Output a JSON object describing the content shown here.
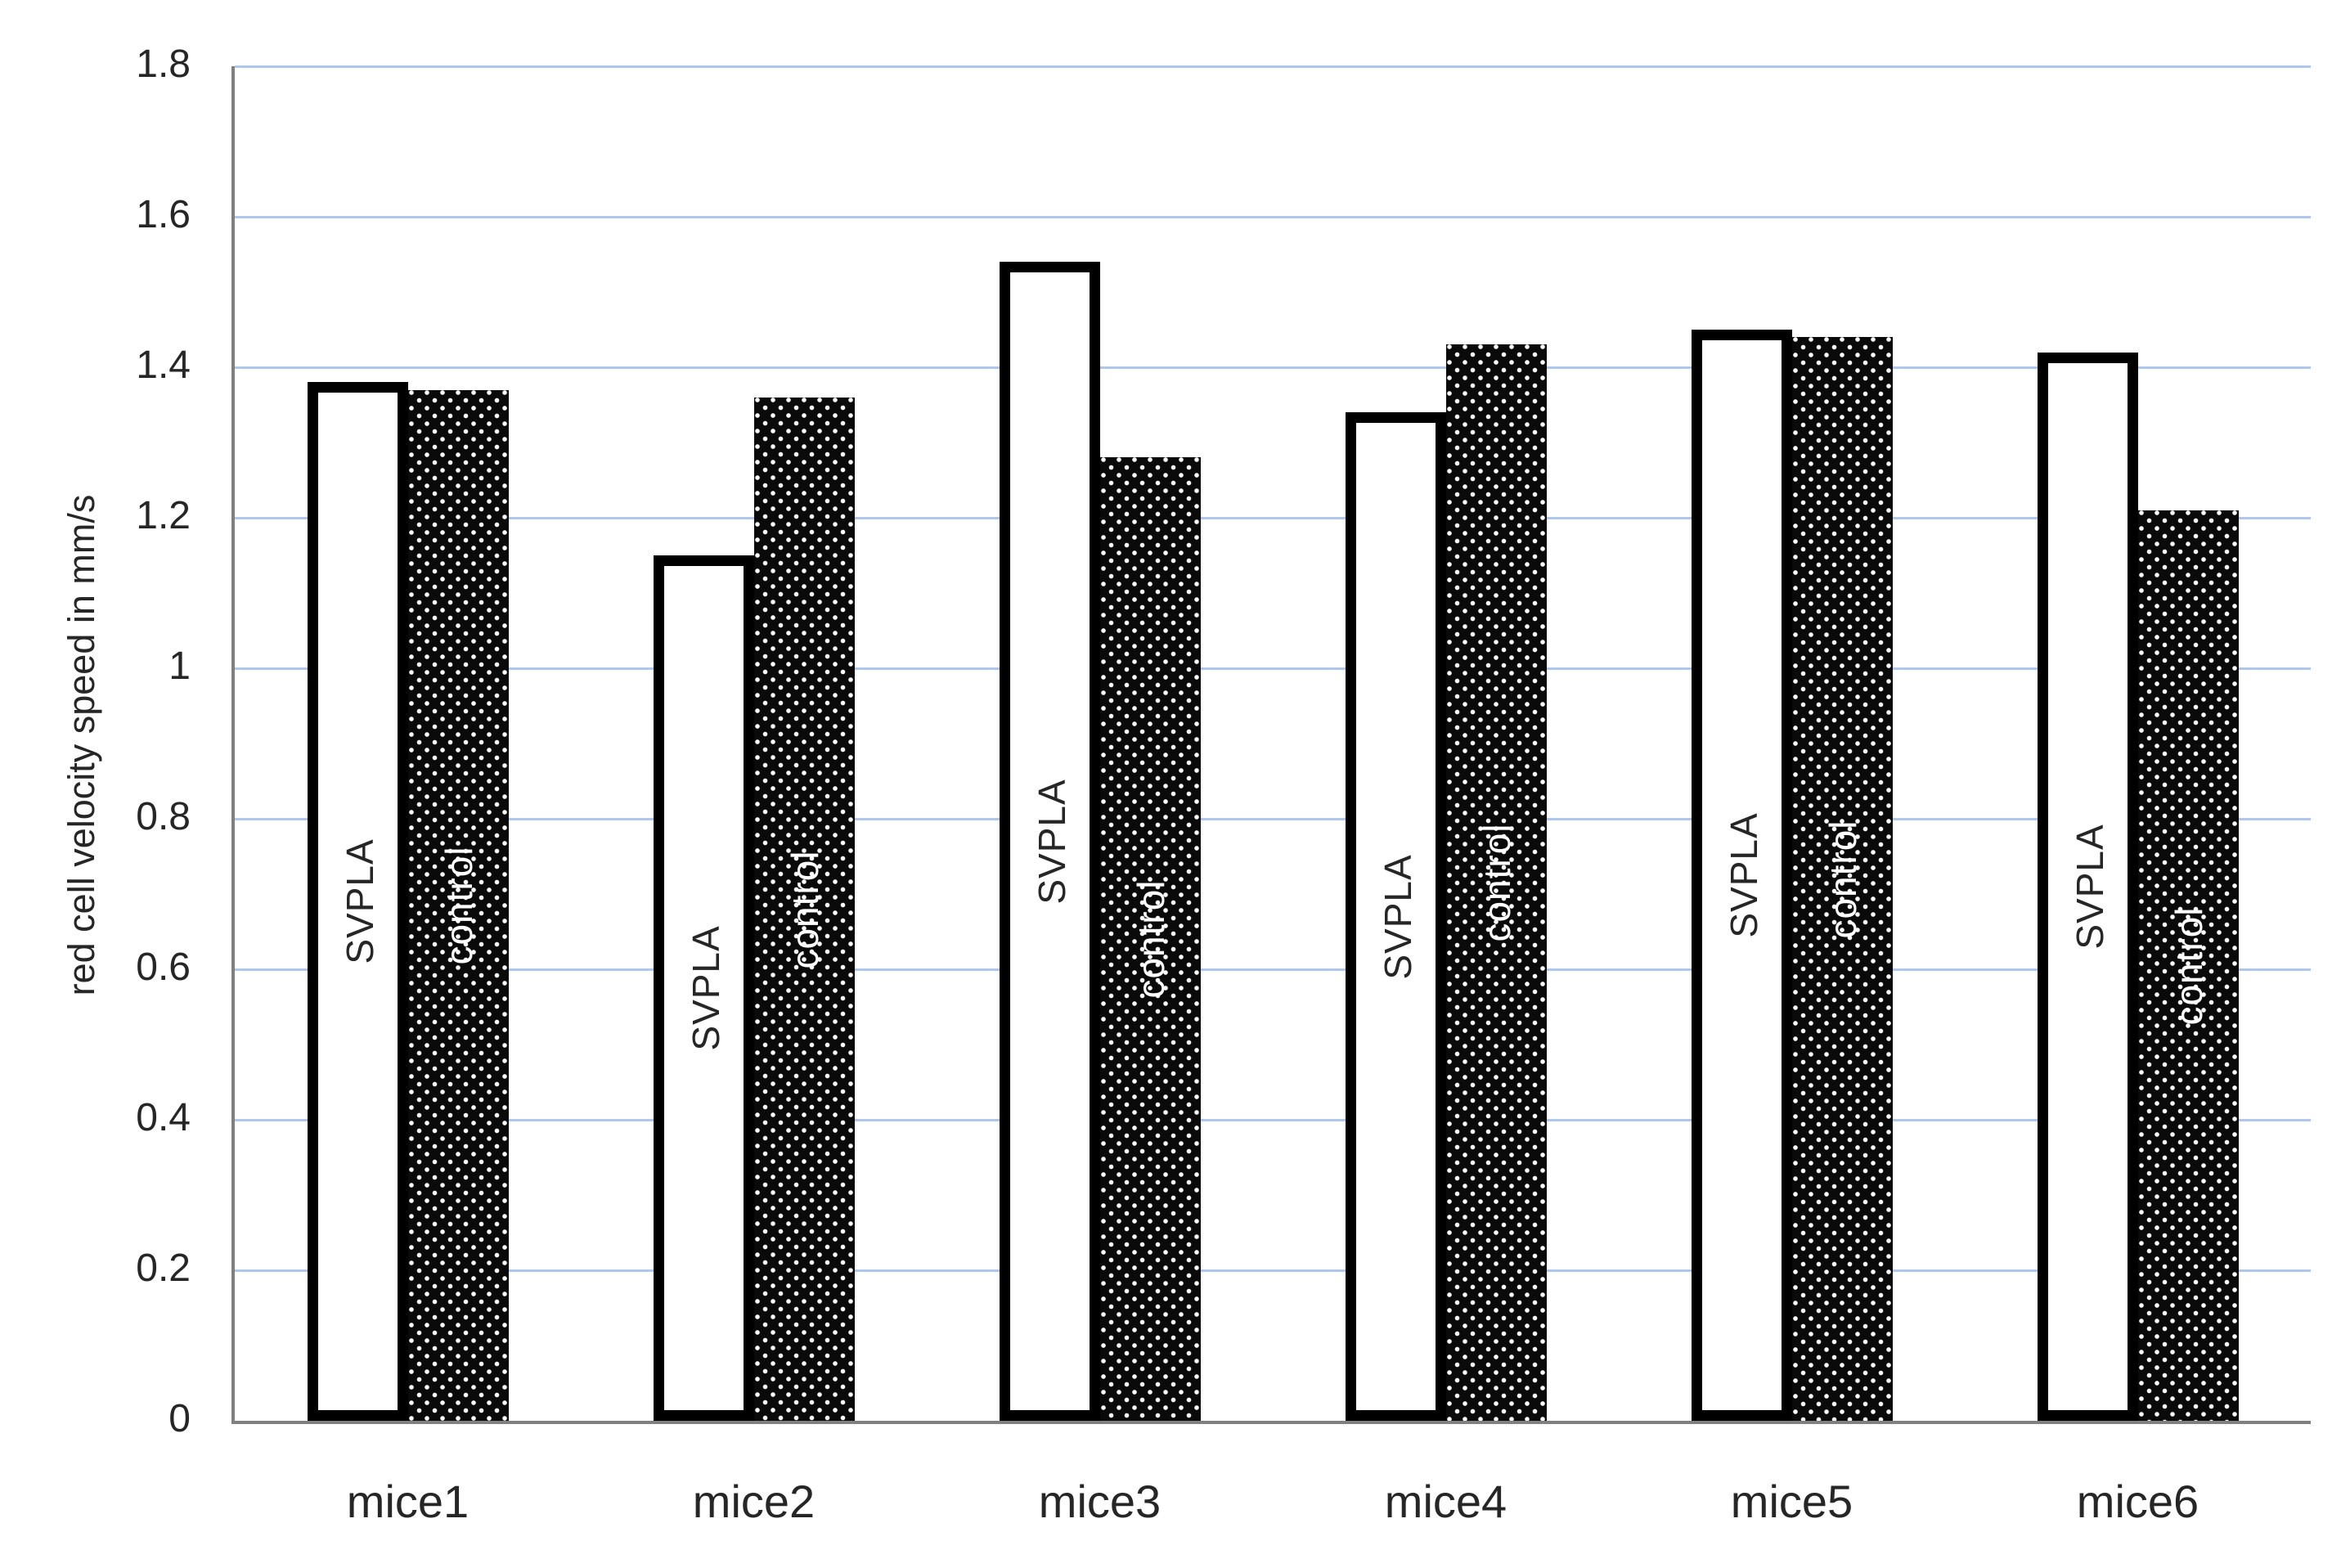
{
  "chart_data": {
    "type": "bar",
    "title": "",
    "ylabel": "red cell velocity speed in mm/s",
    "xlabel": "",
    "categories": [
      "mice1",
      "mice2",
      "mice3",
      "mice4",
      "mice5",
      "mice6"
    ],
    "series": [
      {
        "name": "SVPLA",
        "style": "white-outlined",
        "values": [
          1.38,
          1.15,
          1.54,
          1.34,
          1.45,
          1.42
        ]
      },
      {
        "name": "control",
        "style": "black-dotted",
        "values": [
          1.37,
          1.36,
          1.28,
          1.43,
          1.44,
          1.21
        ]
      }
    ],
    "bar_labels_inside_bars": true,
    "ylim": [
      0,
      1.8
    ],
    "ytick_values": [
      0,
      0.2,
      0.4,
      0.6,
      0.8,
      1.0,
      1.2,
      1.4,
      1.6,
      1.8
    ],
    "ytick_labels": [
      "0",
      "0.2",
      "0.4",
      "0.6",
      "0.8",
      "1",
      "1.2",
      "1.4",
      "1.6",
      "1.8"
    ],
    "grid": true,
    "legend_position": "none"
  },
  "colors": {
    "gridline": "#b4c6e7",
    "axis": "#808080",
    "svpla_fill": "#ffffff",
    "svpla_stroke": "#000000",
    "control_fill": "#0a0a0a",
    "control_dot": "#ffffff",
    "text": "#262626"
  }
}
